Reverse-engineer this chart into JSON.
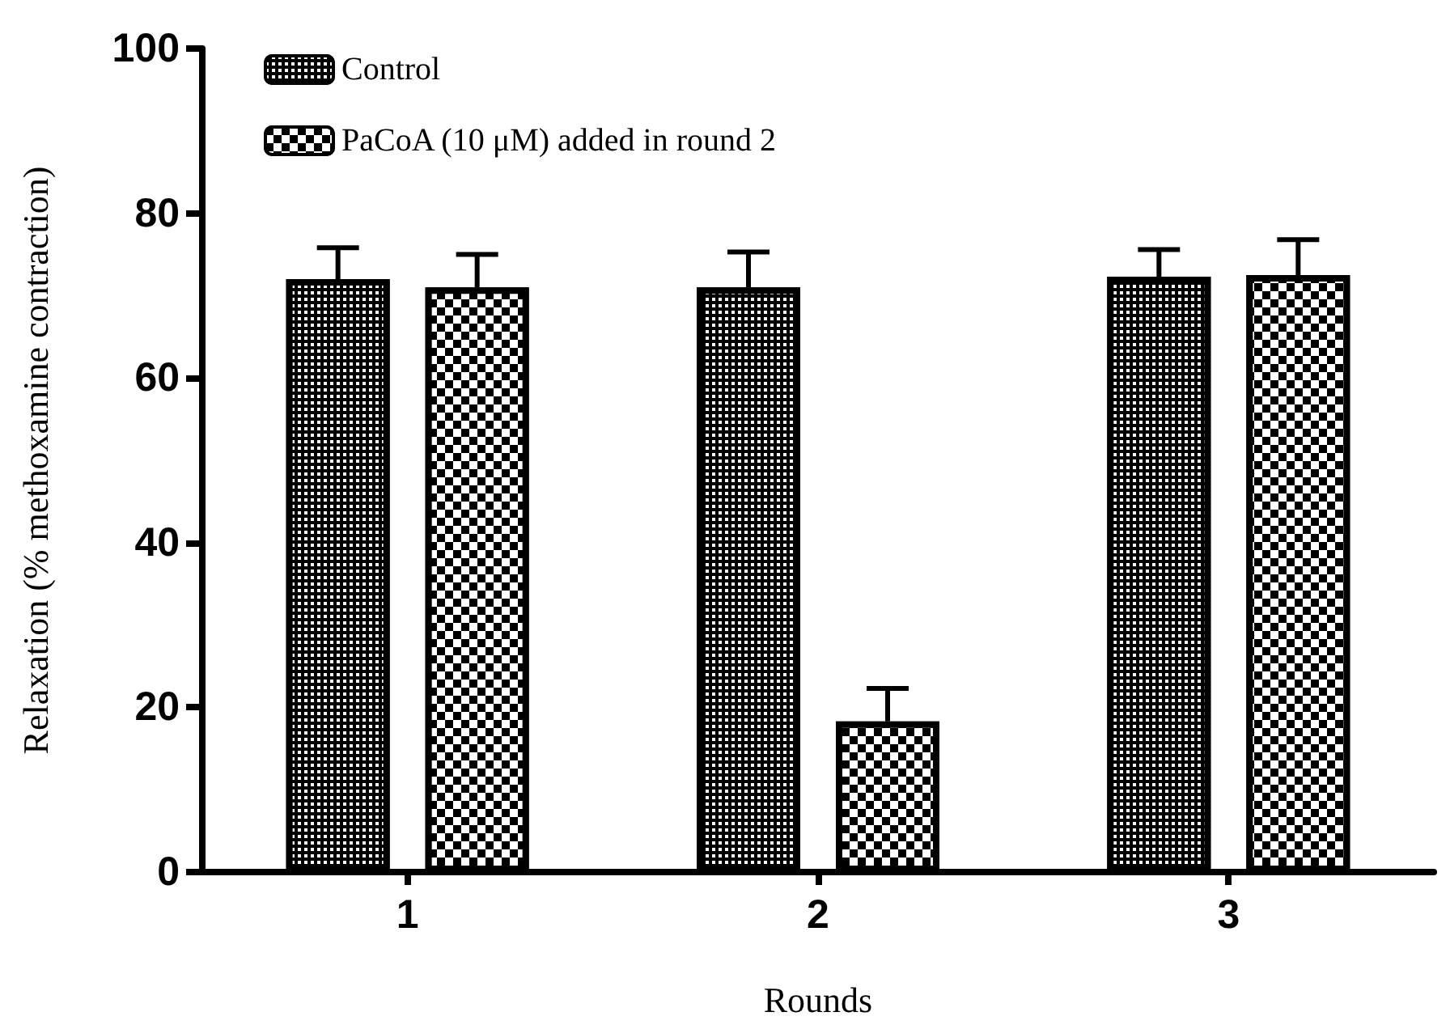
{
  "chart_data": {
    "type": "bar",
    "xlabel": "Rounds",
    "ylabel": "Relaxation (% methoxamine contraction)",
    "categories": [
      "1",
      "2",
      "3"
    ],
    "series": [
      {
        "name": "Control",
        "color": "#000000",
        "values": [
          72,
          71,
          72.3
        ],
        "errors": [
          [
            72,
            75.8
          ],
          [
            71,
            75.3
          ],
          [
            72.3,
            75.6
          ]
        ]
      },
      {
        "name": "PaCoA (10 μM) added in round 2",
        "color": "#000000",
        "values": [
          71,
          18.3,
          72.5
        ],
        "errors": [
          [
            71,
            75
          ],
          [
            18.3,
            22.3
          ],
          [
            72.5,
            76.8
          ]
        ]
      }
    ],
    "ylim": [
      0,
      100
    ],
    "yticks": [
      0,
      20,
      40,
      60,
      80,
      100
    ],
    "grid": false,
    "legend": "top left"
  }
}
